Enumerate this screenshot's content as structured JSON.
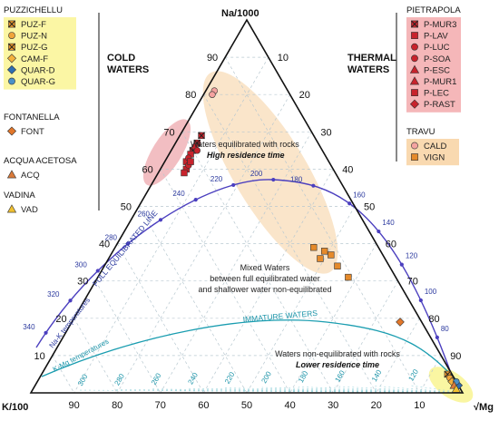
{
  "chart_data": {
    "type": "ternary",
    "corners": {
      "top": "Na/1000",
      "left": "K/100",
      "right": "√Mg"
    },
    "axis_ticks": {
      "left_edge": [
        "10",
        "20",
        "30",
        "40",
        "50",
        "60",
        "70",
        "80",
        "90"
      ],
      "right_edge": [
        "10",
        "20",
        "30",
        "40",
        "50",
        "60",
        "70",
        "80",
        "90"
      ],
      "bottom_edge": [
        "90",
        "80",
        "70",
        "60",
        "50",
        "40",
        "30",
        "20",
        "10"
      ]
    },
    "side_labels": {
      "left": "COLD WATERS",
      "right": "THERMAL WATERS"
    },
    "full_equilibrated_line": {
      "label": "FULL EQUILIBRATED LINE",
      "temperature_label": "Na-K temperatures",
      "temperatures": [
        "340",
        "320",
        "300",
        "280",
        "260",
        "240",
        "220",
        "200",
        "180",
        "160",
        "140",
        "120",
        "100",
        "80"
      ]
    },
    "immature_line": {
      "label": "IMMATURE WATERS",
      "temperature_label": "K-Mg temperatures",
      "temperatures": [
        "300",
        "280",
        "260",
        "240",
        "220",
        "200",
        "180",
        "160",
        "140",
        "120"
      ]
    },
    "regions": [
      {
        "line1": "Waters equilibrated with rocks",
        "line2": "High residence time"
      },
      {
        "line1": "Mixed Waters",
        "line2": "between full equilibrated water",
        "line3": "and shallower water non-equilibrated"
      },
      {
        "line1": "Waters non-equilibrated with rocks",
        "line2": "Lower residence time"
      }
    ],
    "legend_groups": [
      {
        "title": "PUZZICHELLU",
        "items": [
          "PUZ-F",
          "PUZ-N",
          "PUZ-G",
          "CAM-F",
          "QUAR-D",
          "QUAR-G"
        ]
      },
      {
        "title": "FONTANELLA",
        "items": [
          "FONT"
        ]
      },
      {
        "title": "ACQUA ACETOSA",
        "items": [
          "ACQ"
        ]
      },
      {
        "title": "VADINA",
        "items": [
          "VAD"
        ]
      },
      {
        "title": "PIETRAPOLA",
        "items": [
          "P-MUR3",
          "P-LAV",
          "P-LUC",
          "P-SOA",
          "P-ESC",
          "P-MUR1",
          "P-LEC",
          "P-RAST"
        ]
      },
      {
        "title": "TRAVU",
        "items": [
          "CALD",
          "VIGN"
        ]
      }
    ],
    "colors": {
      "puzzichellu_bg": "#fbf6a4",
      "pietrapola_bg": "#f5b7b9",
      "travu_bg": "#f9d9b0",
      "pietrapola": "#c8232c",
      "cald": "#f4a3a0",
      "vign": "#e58a2b",
      "full_line": "#4b3fbf",
      "immature_line": "#1a9db0"
    },
    "series": [
      {
        "name": "P-MUR3",
        "points": [
          [
            69,
            26,
            5
          ],
          [
            67,
            28,
            5
          ],
          [
            65,
            30,
            5
          ]
        ]
      },
      {
        "name": "P-LAV",
        "points": [
          [
            64,
            31,
            5
          ],
          [
            62,
            33,
            5
          ],
          [
            60,
            34,
            6
          ]
        ]
      },
      {
        "name": "P-LUC",
        "points": [
          [
            66,
            29,
            5
          ],
          [
            63,
            32,
            5
          ]
        ]
      },
      {
        "name": "P-SOA",
        "points": [
          [
            61,
            33,
            6
          ],
          [
            65,
            29,
            6
          ]
        ]
      },
      {
        "name": "P-LEC",
        "points": [
          [
            59,
            35,
            6
          ],
          [
            62,
            32,
            6
          ]
        ]
      },
      {
        "name": "CALD",
        "points": [
          [
            81,
            17,
            2
          ],
          [
            80,
            18,
            2
          ]
        ]
      },
      {
        "name": "VIGN",
        "points": [
          [
            39,
            15,
            46
          ],
          [
            38,
            13,
            49
          ],
          [
            36,
            15,
            49
          ],
          [
            37,
            12,
            51
          ],
          [
            34,
            12,
            54
          ],
          [
            31,
            11,
            58
          ]
        ]
      },
      {
        "name": "FONT",
        "points": [
          [
            19,
            5,
            76
          ]
        ]
      },
      {
        "name": "PUZ-F",
        "points": [
          [
            5,
            1,
            94
          ]
        ]
      },
      {
        "name": "PUZ-N",
        "points": [
          [
            4,
            1,
            95
          ]
        ]
      },
      {
        "name": "CAM-F",
        "points": [
          [
            3,
            1,
            96
          ]
        ]
      },
      {
        "name": "QUAR-D",
        "points": [
          [
            2,
            0,
            98
          ]
        ]
      },
      {
        "name": "QUAR-G",
        "points": [
          [
            3,
            0,
            97
          ]
        ]
      },
      {
        "name": "ACQ",
        "points": [
          [
            2,
            1,
            97
          ]
        ]
      },
      {
        "name": "VAD",
        "points": [
          [
            1,
            1,
            98
          ]
        ]
      }
    ]
  }
}
